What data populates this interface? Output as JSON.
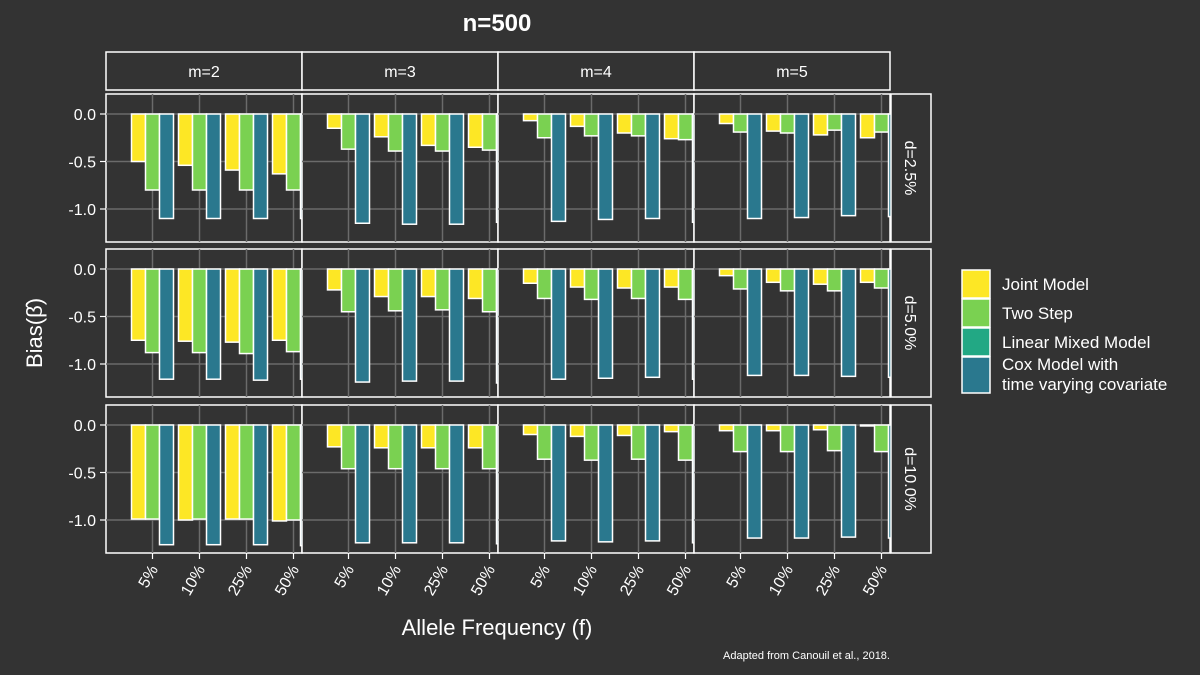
{
  "chart_data": {
    "type": "bar",
    "title": "n=500",
    "xlabel": "Allele Frequency (f)",
    "ylabel": "Bias(β̂)",
    "caption": "Adapted from Canouil et al., 2018.",
    "facet_cols": [
      "m=2",
      "m=3",
      "m=4",
      "m=5"
    ],
    "facet_rows": [
      "d=2.5%",
      "d=5.0%",
      "d=10.0%"
    ],
    "categories": [
      "5%",
      "10%",
      "25%",
      "50%"
    ],
    "y_ticks": [
      0.0,
      -0.5,
      -1.0
    ],
    "y_tick_labels": [
      "0.0",
      "-0.5",
      "-1.0"
    ],
    "legend": [
      {
        "name": "Joint Model",
        "color": "#FDE725"
      },
      {
        "name": "Two Step",
        "color": "#7AD151"
      },
      {
        "name": "Linear Mixed Model",
        "color": "#22A884"
      },
      {
        "name": "Cox Model with\ntime varying covariate",
        "color": "#2A788E"
      }
    ],
    "series_names": [
      "Joint Model",
      "Two Step",
      "Linear Mixed Model",
      "Cox Model with time varying covariate"
    ],
    "panels": [
      [
        [
          [
            -0.5,
            -0.8,
            -1.1
          ],
          [
            -0.54,
            -0.8,
            -1.1
          ],
          [
            -0.59,
            -0.8,
            -1.1
          ],
          [
            -0.63,
            -0.8,
            -1.1
          ]
        ],
        [
          [
            -0.15,
            -0.37,
            -1.15
          ],
          [
            -0.24,
            -0.39,
            -1.16
          ],
          [
            -0.33,
            -0.39,
            -1.16
          ],
          [
            -0.35,
            -0.38,
            -1.14
          ]
        ],
        [
          [
            -0.07,
            -0.25,
            -1.13
          ],
          [
            -0.13,
            -0.23,
            -1.11
          ],
          [
            -0.2,
            -0.23,
            -1.1
          ],
          [
            -0.26,
            -0.27,
            -1.14
          ]
        ],
        [
          [
            -0.1,
            -0.19,
            -1.1
          ],
          [
            -0.18,
            -0.2,
            -1.09
          ],
          [
            -0.22,
            -0.17,
            -1.07
          ],
          [
            -0.25,
            -0.19,
            -1.08
          ]
        ]
      ],
      [
        [
          [
            -0.75,
            -0.88,
            -1.16
          ],
          [
            -0.76,
            -0.88,
            -1.16
          ],
          [
            -0.77,
            -0.89,
            -1.17
          ],
          [
            -0.75,
            -0.87,
            -1.16
          ]
        ],
        [
          [
            -0.22,
            -0.45,
            -1.19
          ],
          [
            -0.29,
            -0.44,
            -1.18
          ],
          [
            -0.29,
            -0.43,
            -1.18
          ],
          [
            -0.31,
            -0.45,
            -1.2
          ]
        ],
        [
          [
            -0.15,
            -0.31,
            -1.16
          ],
          [
            -0.19,
            -0.32,
            -1.15
          ],
          [
            -0.2,
            -0.31,
            -1.14
          ],
          [
            -0.19,
            -0.32,
            -1.16
          ]
        ],
        [
          [
            -0.07,
            -0.21,
            -1.12
          ],
          [
            -0.14,
            -0.23,
            -1.12
          ],
          [
            -0.16,
            -0.23,
            -1.13
          ],
          [
            -0.14,
            -0.2,
            -1.14
          ]
        ]
      ],
      [
        [
          [
            -0.99,
            -0.99,
            -1.26
          ],
          [
            -1.0,
            -0.99,
            -1.26
          ],
          [
            -0.99,
            -0.99,
            -1.26
          ],
          [
            -1.01,
            -1.0,
            -1.27
          ]
        ],
        [
          [
            -0.23,
            -0.46,
            -1.24
          ],
          [
            -0.24,
            -0.46,
            -1.24
          ],
          [
            -0.24,
            -0.46,
            -1.24
          ],
          [
            -0.24,
            -0.46,
            -1.25
          ]
        ],
        [
          [
            -0.1,
            -0.36,
            -1.22
          ],
          [
            -0.12,
            -0.37,
            -1.23
          ],
          [
            -0.11,
            -0.36,
            -1.22
          ],
          [
            -0.07,
            -0.37,
            -1.24
          ]
        ],
        [
          [
            -0.06,
            -0.28,
            -1.19
          ],
          [
            -0.06,
            -0.28,
            -1.19
          ],
          [
            -0.05,
            -0.27,
            -1.18
          ],
          [
            -0.01,
            -0.28,
            -1.19
          ]
        ]
      ]
    ],
    "panel_series_colors": [
      "#FDE725",
      "#7AD151",
      "#2A788E"
    ],
    "ylim": [
      -1.35,
      0.22
    ],
    "grid": true,
    "legend_position": "right"
  }
}
